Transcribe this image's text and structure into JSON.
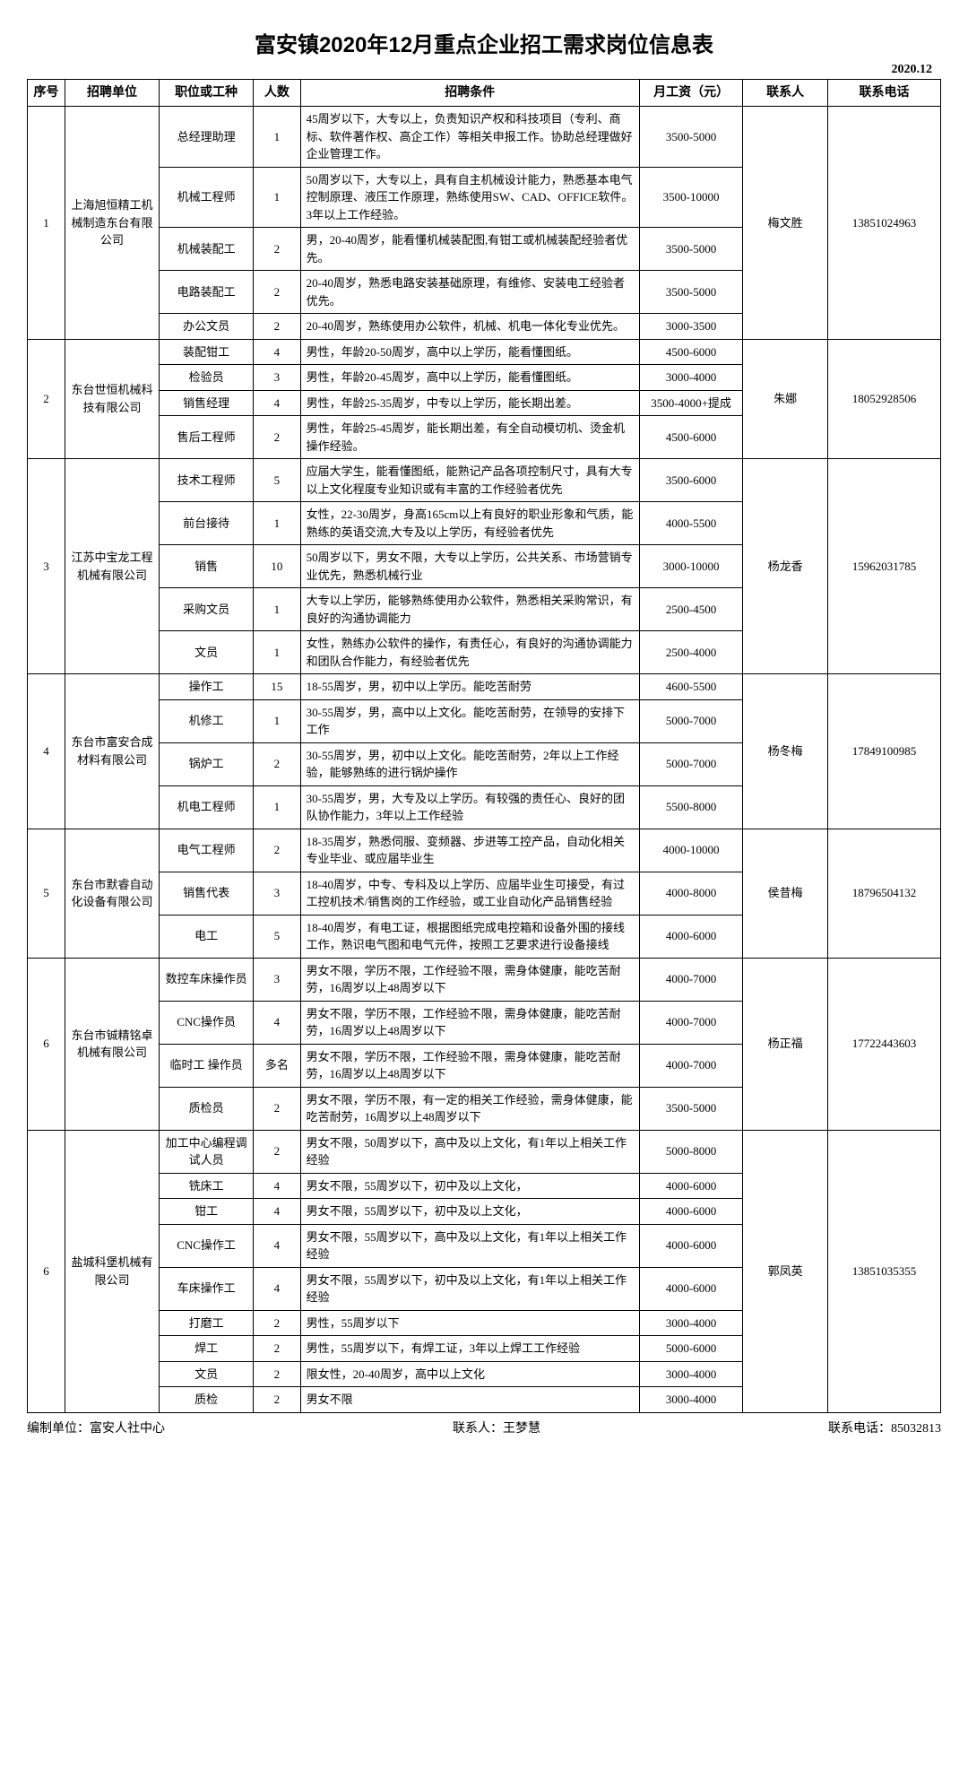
{
  "title": "富安镇2020年12月重点企业招工需求岗位信息表",
  "date_top": "2020.12",
  "headers": [
    "序号",
    "招聘单位",
    "职位或工种",
    "人数",
    "招聘条件",
    "月工资（元）",
    "联系人",
    "联系电话"
  ],
  "footer": {
    "org_label": "编制单位：",
    "org": "富安人社中心",
    "contact_label": "联系人：",
    "contact": "王梦慧",
    "phone_label": "联系电话：",
    "phone": "85032813"
  },
  "companies": [
    {
      "idx": "1",
      "name": "上海旭恒精工机械制造东台有限公司",
      "contact": "梅文胜",
      "phone": "13851024963",
      "rows": [
        {
          "pos": "总经理助理",
          "num": "1",
          "req": "45周岁以下，大专以上，负责知识产权和科技项目（专利、商标、软件著作权、高企工作）等相关申报工作。协助总经理做好企业管理工作。",
          "sal": "3500-5000"
        },
        {
          "pos": "机械工程师",
          "num": "1",
          "req": "50周岁以下，大专以上，具有自主机械设计能力，熟悉基本电气控制原理、液压工作原理，熟练使用SW、CAD、OFFICE软件。3年以上工作经验。",
          "sal": "3500-10000"
        },
        {
          "pos": "机械装配工",
          "num": "2",
          "req": "男，20-40周岁，能看懂机械装配图,有钳工或机械装配经验者优先。",
          "sal": "3500-5000"
        },
        {
          "pos": "电路装配工",
          "num": "2",
          "req": "20-40周岁，熟悉电路安装基础原理，有维修、安装电工经验者优先。",
          "sal": "3500-5000"
        },
        {
          "pos": "办公文员",
          "num": "2",
          "req": "20-40周岁，熟练使用办公软件，机械、机电一体化专业优先。",
          "sal": "3000-3500"
        }
      ]
    },
    {
      "idx": "2",
      "name": "东台世恒机械科技有限公司",
      "contact": "朱娜",
      "phone": "18052928506",
      "rows": [
        {
          "pos": "装配钳工",
          "num": "4",
          "req": "男性，年龄20-50周岁，高中以上学历，能看懂图纸。",
          "sal": "4500-6000"
        },
        {
          "pos": "检验员",
          "num": "3",
          "req": "男性，年龄20-45周岁，高中以上学历，能看懂图纸。",
          "sal": "3000-4000"
        },
        {
          "pos": "销售经理",
          "num": "4",
          "req": "男性，年龄25-35周岁，中专以上学历，能长期出差。",
          "sal": "3500-4000+提成"
        },
        {
          "pos": "售后工程师",
          "num": "2",
          "req": "男性，年龄25-45周岁，能长期出差，有全自动模切机、烫金机操作经验。",
          "sal": "4500-6000"
        }
      ]
    },
    {
      "idx": "3",
      "name": "江苏中宝龙工程机械有限公司",
      "contact": "杨龙香",
      "phone": "15962031785",
      "rows": [
        {
          "pos": "技术工程师",
          "num": "5",
          "req": "应届大学生，能看懂图纸，能熟记产品各项控制尺寸，具有大专以上文化程度专业知识或有丰富的工作经验者优先",
          "sal": "3500-6000"
        },
        {
          "pos": "前台接待",
          "num": "1",
          "req": "女性，22-30周岁，身高165cm以上有良好的职业形象和气质，能熟练的英语交流,大专及以上学历，有经验者优先",
          "sal": "4000-5500"
        },
        {
          "pos": "销售",
          "num": "10",
          "req": "50周岁以下，男女不限，大专以上学历，公共关系、市场营销专业优先，熟悉机械行业",
          "sal": "3000-10000"
        },
        {
          "pos": "采购文员",
          "num": "1",
          "req": "大专以上学历，能够熟练使用办公软件，熟悉相关采购常识，有良好的沟通协调能力",
          "sal": "2500-4500"
        },
        {
          "pos": "文员",
          "num": "1",
          "req": "女性，熟练办公软件的操作，有责任心，有良好的沟通协调能力和团队合作能力，有经验者优先",
          "sal": "2500-4000"
        }
      ]
    },
    {
      "idx": "4",
      "name": "东台市富安合成材料有限公司",
      "contact": "杨冬梅",
      "phone": "17849100985",
      "rows": [
        {
          "pos": "操作工",
          "num": "15",
          "req": "18-55周岁，男，初中以上学历。能吃苦耐劳",
          "sal": "4600-5500"
        },
        {
          "pos": "机修工",
          "num": "1",
          "req": "30-55周岁，男，高中以上文化。能吃苦耐劳，在领导的安排下工作",
          "sal": "5000-7000"
        },
        {
          "pos": "锅炉工",
          "num": "2",
          "req": "30-55周岁，男，初中以上文化。能吃苦耐劳，2年以上工作经验，能够熟练的进行锅炉操作",
          "sal": "5000-7000"
        },
        {
          "pos": "机电工程师",
          "num": "1",
          "req": "30-55周岁，男，大专及以上学历。有较强的责任心、良好的团队协作能力，3年以上工作经验",
          "sal": "5500-8000"
        }
      ]
    },
    {
      "idx": "5",
      "name": "东台市默睿自动化设备有限公司",
      "contact": "侯昔梅",
      "phone": "18796504132",
      "rows": [
        {
          "pos": "电气工程师",
          "num": "2",
          "req": "18-35周岁，熟悉伺服、变频器、步进等工控产品，自动化相关专业毕业、或应届毕业生",
          "sal": "4000-10000"
        },
        {
          "pos": "销售代表",
          "num": "3",
          "req": "18-40周岁，中专、专科及以上学历、应届毕业生可接受，有过工控机技术/销售岗的工作经验，或工业自动化产品销售经验",
          "sal": "4000-8000"
        },
        {
          "pos": "电工",
          "num": "5",
          "req": "18-40周岁，有电工证，根据图纸完成电控箱和设备外围的接线工作，熟识电气图和电气元件，按照工艺要求进行设备接线",
          "sal": "4000-6000"
        }
      ]
    },
    {
      "idx": "6",
      "name": "东台市铖精铭卓机械有限公司",
      "contact": "杨正福",
      "phone": "17722443603",
      "rows": [
        {
          "pos": "数控车床操作员",
          "num": "3",
          "req": "男女不限，学历不限，工作经验不限，需身体健康，能吃苦耐劳，16周岁以上48周岁以下",
          "sal": "4000-7000"
        },
        {
          "pos": "CNC操作员",
          "num": "4",
          "req": "男女不限，学历不限，工作经验不限，需身体健康，能吃苦耐劳，16周岁以上48周岁以下",
          "sal": "4000-7000"
        },
        {
          "pos": "临时工 操作员",
          "num": "多名",
          "req": "男女不限，学历不限，工作经验不限，需身体健康，能吃苦耐劳，16周岁以上48周岁以下",
          "sal": "4000-7000"
        },
        {
          "pos": "质检员",
          "num": "2",
          "req": "男女不限，学历不限，有一定的相关工作经验，需身体健康，能吃苦耐劳，16周岁以上48周岁以下",
          "sal": "3500-5000"
        }
      ]
    },
    {
      "idx": "6",
      "name": "盐城科堡机械有限公司",
      "contact": "郭凤英",
      "phone": "13851035355",
      "rows": [
        {
          "pos": "加工中心编程调试人员",
          "num": "2",
          "req": "男女不限，50周岁以下，高中及以上文化，有1年以上相关工作经验",
          "sal": "5000-8000"
        },
        {
          "pos": "铣床工",
          "num": "4",
          "req": "男女不限，55周岁以下，初中及以上文化，",
          "sal": "4000-6000"
        },
        {
          "pos": "钳工",
          "num": "4",
          "req": "男女不限，55周岁以下，初中及以上文化，",
          "sal": "4000-6000"
        },
        {
          "pos": "CNC操作工",
          "num": "4",
          "req": "男女不限，55周岁以下，高中及以上文化，有1年以上相关工作经验",
          "sal": "4000-6000"
        },
        {
          "pos": "车床操作工",
          "num": "4",
          "req": "男女不限，55周岁以下，初中及以上文化，有1年以上相关工作经验",
          "sal": "4000-6000"
        },
        {
          "pos": "打磨工",
          "num": "2",
          "req": "男性，55周岁以下",
          "sal": "3000-4000"
        },
        {
          "pos": "焊工",
          "num": "2",
          "req": "男性，55周岁以下，有焊工证，3年以上焊工工作经验",
          "sal": "5000-6000"
        },
        {
          "pos": "文员",
          "num": "2",
          "req": "限女性，20-40周岁，高中以上文化",
          "sal": "3000-4000"
        },
        {
          "pos": "质检",
          "num": "2",
          "req": "男女不限",
          "sal": "3000-4000"
        }
      ]
    }
  ]
}
